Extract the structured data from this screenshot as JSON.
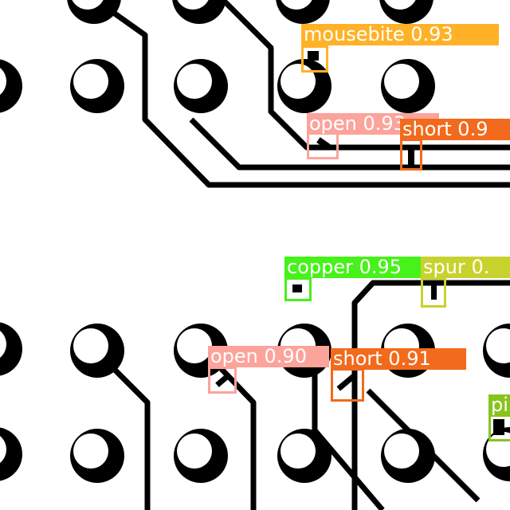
{
  "image": {
    "description_colors": {
      "board": "#ffffff",
      "copper": "#000000"
    }
  },
  "detections": [
    {
      "id": "mousebite-1",
      "label": "mousebite 0.93",
      "color": "#ffb227"
    },
    {
      "id": "open-1",
      "label": "open 0.93",
      "color": "#fca39b"
    },
    {
      "id": "short-1",
      "label": "short 0.9",
      "color": "#f26a1c"
    },
    {
      "id": "copper-1",
      "label": "copper 0.95",
      "color": "#46f219"
    },
    {
      "id": "spur-1",
      "label": "spur 0.",
      "color": "#c8d22d"
    },
    {
      "id": "open-2",
      "label": "open 0.90",
      "color": "#fca39b"
    },
    {
      "id": "short-2",
      "label": "short 0.91",
      "color": "#f26a1c"
    },
    {
      "id": "pinhole-1",
      "label": "pi",
      "color": "#88c41d"
    }
  ]
}
